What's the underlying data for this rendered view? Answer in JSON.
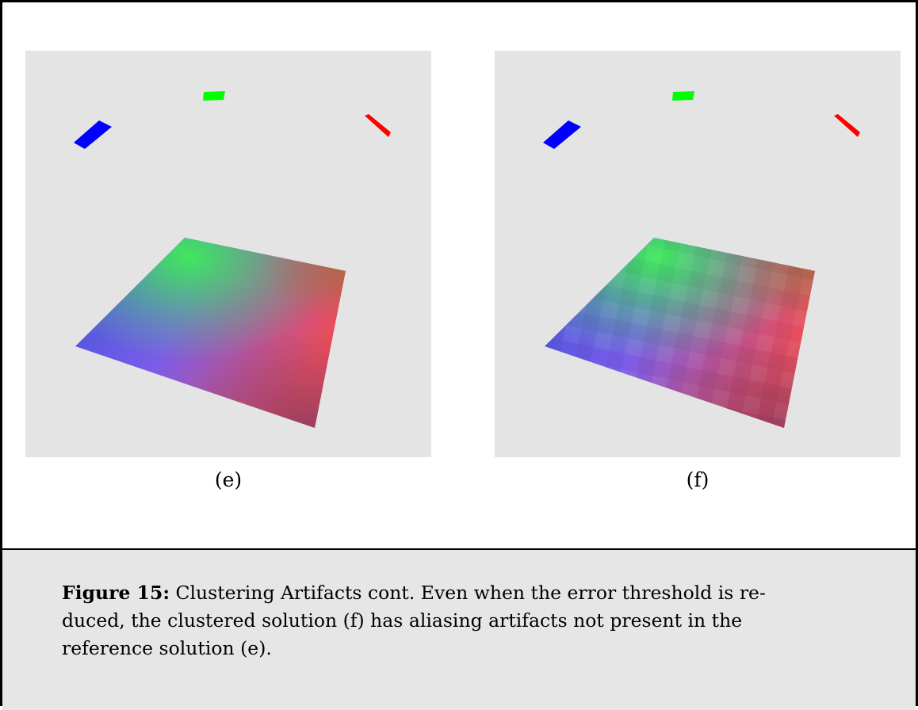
{
  "panels": [
    {
      "label": "(e)"
    },
    {
      "label": "(f)"
    }
  ],
  "caption": {
    "label": "Figure 15:",
    "lines": [
      "Clustering Artifacts cont. Even when the error threshold is re-",
      "duced, the clustered solution (f) has aliasing artifacts not present in the",
      "reference solution (e)."
    ]
  }
}
